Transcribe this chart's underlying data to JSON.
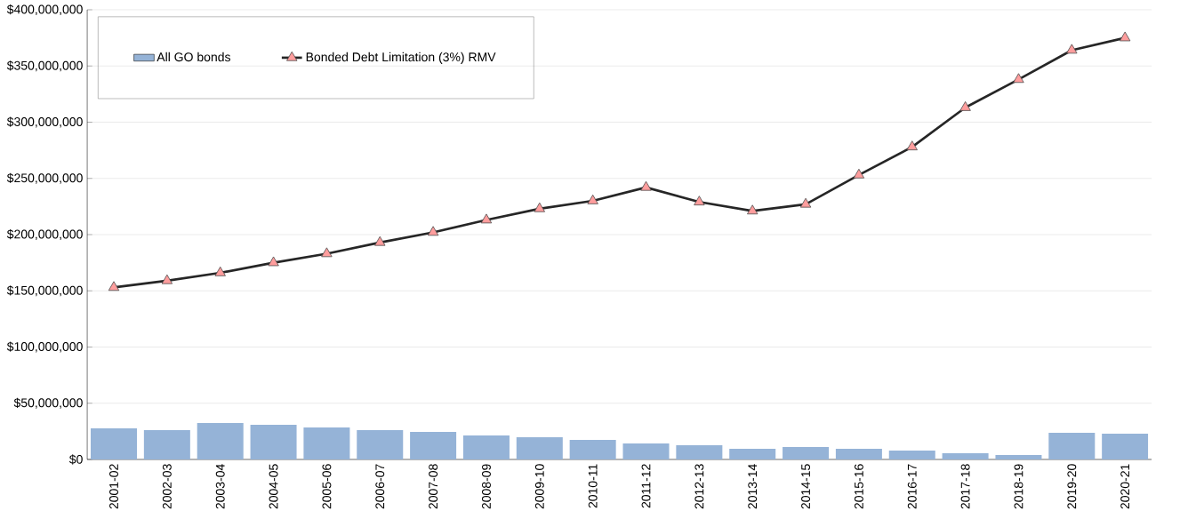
{
  "chart_data": {
    "type": "bar",
    "categories": [
      "2001-02",
      "2002-03",
      "2003-04",
      "2004-05",
      "2005-06",
      "2006-07",
      "2007-08",
      "2008-09",
      "2009-10",
      "2010-11",
      "2011-12",
      "2012-13",
      "2013-14",
      "2014-15",
      "2015-16",
      "2016-17",
      "2017-18",
      "2018-19",
      "2019-20",
      "2020-21"
    ],
    "series": [
      {
        "name": "All GO bonds",
        "color": "#95b3d7",
        "values": [
          27700000,
          26000000,
          32400000,
          30800000,
          28500000,
          26000000,
          24500000,
          21300000,
          19800000,
          17400000,
          14200000,
          12600000,
          9500000,
          11000000,
          9500000,
          7900000,
          5500000,
          4000000,
          23700000,
          23000000
        ]
      },
      {
        "name": "Bonded Debt Limitation (3%) RMV",
        "type": "line",
        "color": "#262626",
        "values": [
          153000000,
          159000000,
          166000000,
          175000000,
          183000000,
          193000000,
          202000000,
          213000000,
          223000000,
          230000000,
          242000000,
          229000000,
          221000000,
          227000000,
          253000000,
          278000000,
          313000000,
          338000000,
          364000000,
          375000000
        ]
      }
    ],
    "ylim": [
      0,
      400000000
    ],
    "yticks": [
      {
        "value": 0,
        "label": "$0"
      },
      {
        "value": 50000000,
        "label": "$50,000,000"
      },
      {
        "value": 100000000,
        "label": "$100,000,000"
      },
      {
        "value": 150000000,
        "label": "$150,000,000"
      },
      {
        "value": 200000000,
        "label": "$200,000,000"
      },
      {
        "value": 250000000,
        "label": "$250,000,000"
      },
      {
        "value": 300000000,
        "label": "$300,000,000"
      },
      {
        "value": 350000000,
        "label": "$350,000,000"
      },
      {
        "value": 400000000,
        "label": "$400,000,000"
      }
    ],
    "grid": "y",
    "legend": "top left",
    "marker": "triangle",
    "line_style": "solid"
  }
}
